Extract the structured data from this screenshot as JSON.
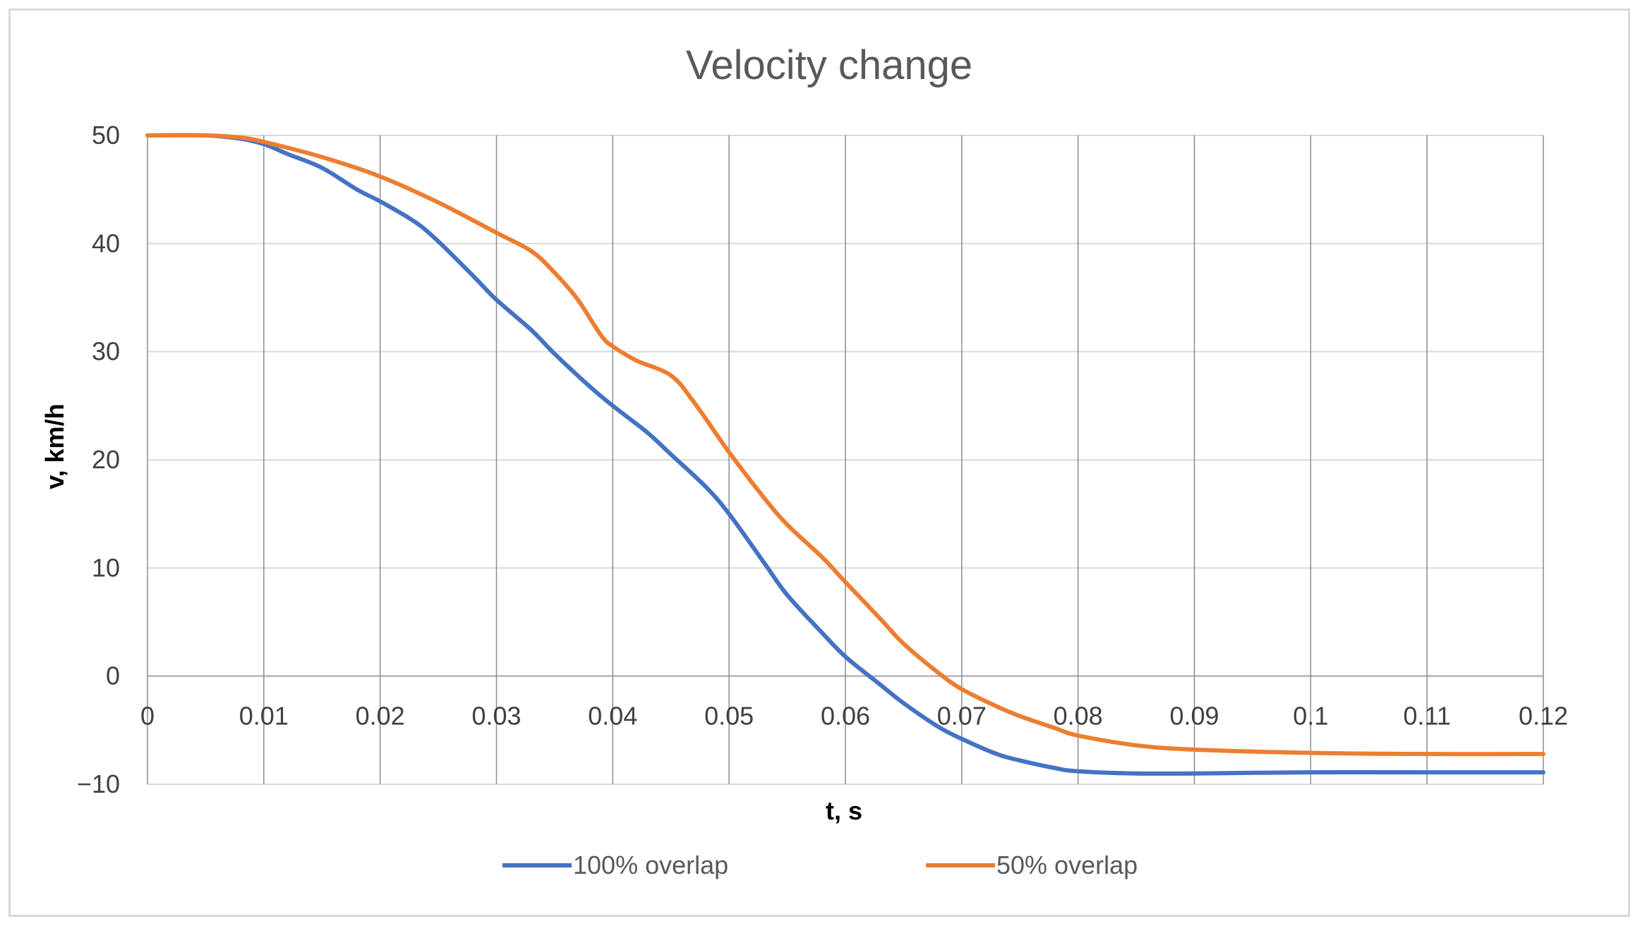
{
  "chart_data": {
    "type": "line",
    "title": "Velocity change",
    "xlabel": "t, s",
    "ylabel": "v, km/h",
    "xlim": [
      0,
      0.12
    ],
    "ylim": [
      -10,
      50
    ],
    "x_ticks": [
      {
        "value": 0,
        "label": "0"
      },
      {
        "value": 0.01,
        "label": "0.01"
      },
      {
        "value": 0.02,
        "label": "0.02"
      },
      {
        "value": 0.03,
        "label": "0.03"
      },
      {
        "value": 0.04,
        "label": "0.04"
      },
      {
        "value": 0.05,
        "label": "0.05"
      },
      {
        "value": 0.06,
        "label": "0.06"
      },
      {
        "value": 0.07,
        "label": "0.07"
      },
      {
        "value": 0.08,
        "label": "0.08"
      },
      {
        "value": 0.09,
        "label": "0.09"
      },
      {
        "value": 0.1,
        "label": "0.1"
      },
      {
        "value": 0.11,
        "label": "0.11"
      },
      {
        "value": 0.12,
        "label": "0.12"
      }
    ],
    "y_ticks": [
      {
        "value": 50,
        "label": "50"
      },
      {
        "value": 40,
        "label": "40"
      },
      {
        "value": 30,
        "label": "30"
      },
      {
        "value": 20,
        "label": "20"
      },
      {
        "value": 10,
        "label": "10"
      },
      {
        "value": 0,
        "label": "0"
      },
      {
        "value": -10,
        "label": "−10"
      }
    ],
    "grid": true,
    "legend_position": "bottom",
    "series": [
      {
        "name": "100% overlap",
        "color": "#4472c4",
        "x": [
          0,
          0.005,
          0.008,
          0.01,
          0.012,
          0.015,
          0.018,
          0.02,
          0.023,
          0.025,
          0.028,
          0.03,
          0.033,
          0.035,
          0.038,
          0.04,
          0.043,
          0.045,
          0.048,
          0.05,
          0.053,
          0.055,
          0.058,
          0.06,
          0.063,
          0.065,
          0.068,
          0.07,
          0.073,
          0.075,
          0.078,
          0.08,
          0.085,
          0.09,
          0.1,
          0.11,
          0.12
        ],
        "y": [
          50,
          50,
          49.7,
          49.2,
          48.3,
          47,
          45,
          43.9,
          42,
          40.2,
          37,
          34.8,
          32,
          29.8,
          26.8,
          25,
          22.5,
          20.5,
          17.5,
          15,
          10.5,
          7.5,
          4,
          1.8,
          -0.8,
          -2.5,
          -4.7,
          -5.8,
          -7.2,
          -7.8,
          -8.5,
          -8.8,
          -9,
          -9,
          -8.9,
          -8.9,
          -8.9
        ]
      },
      {
        "name": "50% overlap",
        "color": "#ed7d31",
        "x": [
          0,
          0.005,
          0.008,
          0.01,
          0.015,
          0.02,
          0.025,
          0.03,
          0.033,
          0.035,
          0.037,
          0.039,
          0.04,
          0.042,
          0.045,
          0.047,
          0.05,
          0.053,
          0.055,
          0.058,
          0.06,
          0.063,
          0.065,
          0.068,
          0.07,
          0.073,
          0.075,
          0.078,
          0.08,
          0.085,
          0.09,
          0.1,
          0.11,
          0.12
        ],
        "y": [
          50,
          50,
          49.8,
          49.4,
          48,
          46.2,
          43.8,
          41,
          39.3,
          37.3,
          34.8,
          31.5,
          30.5,
          29.2,
          27.8,
          25.3,
          20.7,
          16.5,
          14,
          11,
          8.7,
          5.3,
          3,
          0.3,
          -1.2,
          -2.8,
          -3.7,
          -4.8,
          -5.5,
          -6.4,
          -6.8,
          -7.1,
          -7.2,
          -7.2
        ]
      }
    ]
  }
}
